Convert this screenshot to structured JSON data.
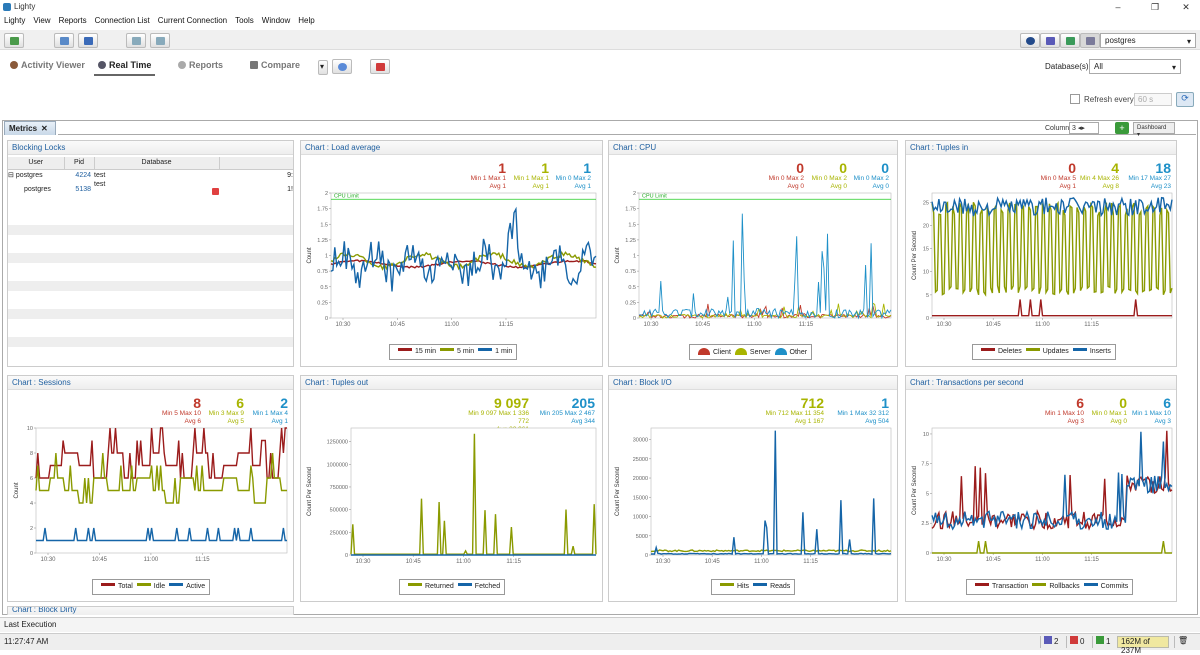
{
  "app_title": "Lighty",
  "window_controls": {
    "minimize": "–",
    "restore": "❐",
    "close": "✕"
  },
  "menu": [
    "Lighty",
    "View",
    "Reports",
    "Connection List",
    "Current Connection",
    "Tools",
    "Window",
    "Help"
  ],
  "connection": "postgres",
  "tabs": [
    {
      "label": "Activity Viewer",
      "icon": "person-icon"
    },
    {
      "label": "Real Time",
      "icon": "gauge-icon"
    },
    {
      "label": "Reports",
      "icon": "wrench-icon"
    },
    {
      "label": "Compare",
      "icon": "compare-icon"
    }
  ],
  "databases_label": "Database(s)",
  "databases_value": "All",
  "refresh_label": "Refresh every",
  "refresh_value": "60 s",
  "metrics_tab": "Metrics",
  "columns_label": "Columns",
  "columns_value": "3",
  "dashboard_label": "Dashboard",
  "blocking": {
    "title": "Blocking Locks",
    "headers": [
      "User",
      "Pid",
      "Database"
    ],
    "rows": [
      {
        "user": "postgres",
        "pid": "4224",
        "db": "test",
        "extra": "9:"
      },
      {
        "user": "postgres",
        "pid": "5138",
        "db": "test",
        "extra": "1!"
      }
    ]
  },
  "charts": [
    {
      "id": "load",
      "title": "Chart : Load average",
      "ylabel": "Count",
      "xticks": [
        "10:30",
        "10:45",
        "11:00",
        "11:15"
      ],
      "yticks": [
        "0",
        "0.25",
        "0.5",
        "0.75",
        "1",
        "1.25",
        "1.5",
        "1.75",
        "2"
      ],
      "ymax": 2,
      "limit": 1.9,
      "limit_label": "CPU Limit",
      "stats": [
        {
          "big": "1",
          "line1": "Min 1 Max 1",
          "line2": "Avg 1",
          "color": "#c0392b"
        },
        {
          "big": "1",
          "line1": "Min 1 Max 1",
          "line2": "Avg 1",
          "color": "#a8b400"
        },
        {
          "big": "1",
          "line1": "Min 0 Max 2",
          "line2": "Avg 1",
          "color": "#1e90c8"
        }
      ],
      "legend": [
        {
          "name": "15 min",
          "color": "#9b1c1c"
        },
        {
          "name": "5 min",
          "color": "#8a9a00"
        },
        {
          "name": "1 min",
          "color": "#1565a8"
        }
      ]
    },
    {
      "id": "cpu",
      "title": "Chart : CPU",
      "ylabel": "Count",
      "xticks": [
        "10:30",
        "10:45",
        "11:00",
        "11:15"
      ],
      "yticks": [
        "0",
        "0.25",
        "0.5",
        "0.75",
        "1",
        "1.25",
        "1.5",
        "1.75",
        "2"
      ],
      "ymax": 2,
      "limit": 1.9,
      "limit_label": "CPU Limit",
      "stats": [
        {
          "big": "0",
          "line1": "Min 0 Max 2",
          "line2": "Avg 0",
          "color": "#c0392b"
        },
        {
          "big": "0",
          "line1": "Min 0 Max 2",
          "line2": "Avg 0",
          "color": "#a8b400"
        },
        {
          "big": "0",
          "line1": "Min 0 Max 2",
          "line2": "Avg 0",
          "color": "#1e90c8"
        }
      ],
      "legend": [
        {
          "name": "Client",
          "color": "#c0392b"
        },
        {
          "name": "Server",
          "color": "#a8b400"
        },
        {
          "name": "Other",
          "color": "#1e90c8"
        }
      ]
    },
    {
      "id": "tin",
      "title": "Chart : Tuples in",
      "ylabel": "Count Per Second",
      "xticks": [
        "10:30",
        "10:45",
        "11:00",
        "11:15"
      ],
      "yticks": [
        "0",
        "5",
        "10",
        "15",
        "20",
        "25"
      ],
      "ymax": 27,
      "stats": [
        {
          "big": "0",
          "line1": "Min 0 Max 5",
          "line2": "Avg 1",
          "color": "#c0392b"
        },
        {
          "big": "4",
          "line1": "Min 4 Max 26",
          "line2": "Avg 8",
          "color": "#a8b400"
        },
        {
          "big": "18",
          "line1": "Min 17 Max 27",
          "line2": "Avg 23",
          "color": "#1e90c8"
        }
      ],
      "legend": [
        {
          "name": "Deletes",
          "color": "#9b1c1c"
        },
        {
          "name": "Updates",
          "color": "#8a9a00"
        },
        {
          "name": "Inserts",
          "color": "#1565a8"
        }
      ]
    },
    {
      "id": "sess",
      "title": "Chart : Sessions",
      "ylabel": "Count",
      "xticks": [
        "10:30",
        "10:45",
        "11:00",
        "11:15"
      ],
      "yticks": [
        "0",
        "2",
        "4",
        "6",
        "8",
        "10"
      ],
      "ymax": 10,
      "stats": [
        {
          "big": "8",
          "line1": "Min 5 Max 10",
          "line2": "Avg 6",
          "color": "#c0392b"
        },
        {
          "big": "6",
          "line1": "Min 3 Max 9",
          "line2": "Avg 5",
          "color": "#a8b400"
        },
        {
          "big": "2",
          "line1": "Min 1 Max 4",
          "line2": "Avg 1",
          "color": "#1e90c8"
        }
      ],
      "legend": [
        {
          "name": "Total",
          "color": "#9b1c1c"
        },
        {
          "name": "Idle",
          "color": "#8a9a00"
        },
        {
          "name": "Active",
          "color": "#1565a8"
        }
      ]
    },
    {
      "id": "tout",
      "title": "Chart : Tuples out",
      "ylabel": "Count Per Second",
      "xticks": [
        "10:30",
        "10:45",
        "11:00",
        "11:15"
      ],
      "yticks": [
        "0",
        "250000",
        "500000",
        "750000",
        "1000000",
        "1250000"
      ],
      "ymax": 1400000,
      "stats": [
        {
          "big": "9 097",
          "line1": "Min 9 097 Max 1 336 772",
          "line2": "Avg 32 961",
          "color": "#a8b400"
        },
        {
          "big": "205",
          "line1": "Min 205 Max 2 467",
          "line2": "Avg 344",
          "color": "#1e90c8"
        }
      ],
      "legend": [
        {
          "name": "Returned",
          "color": "#8a9a00"
        },
        {
          "name": "Fetched",
          "color": "#1565a8"
        }
      ]
    },
    {
      "id": "bio",
      "title": "Chart : Block I/O",
      "ylabel": "Count Per Second",
      "xticks": [
        "10:30",
        "10:45",
        "11:00",
        "11:15"
      ],
      "yticks": [
        "0",
        "5000",
        "10000",
        "15000",
        "20000",
        "25000",
        "30000"
      ],
      "ymax": 33000,
      "stats": [
        {
          "big": "712",
          "line1": "Min 712 Max 11 354",
          "line2": "Avg 1 167",
          "color": "#a8b400"
        },
        {
          "big": "1",
          "line1": "Min 1 Max 32 312",
          "line2": "Avg 504",
          "color": "#1e90c8"
        }
      ],
      "legend": [
        {
          "name": "Hits",
          "color": "#8a9a00"
        },
        {
          "name": "Reads",
          "color": "#1565a8"
        }
      ]
    },
    {
      "id": "tps",
      "title": "Chart : Transactions per second",
      "ylabel": "Count Per Second",
      "xticks": [
        "10:30",
        "10:45",
        "11:00",
        "11:15"
      ],
      "yticks": [
        "0",
        "2.5",
        "5",
        "7.5",
        "10"
      ],
      "ymax": 10.5,
      "stats": [
        {
          "big": "6",
          "line1": "Min 1 Max 10",
          "line2": "Avg 3",
          "color": "#c0392b"
        },
        {
          "big": "0",
          "line1": "Min 0 Max 1",
          "line2": "Avg 0",
          "color": "#a8b400"
        },
        {
          "big": "6",
          "line1": "Min 1 Max 10",
          "line2": "Avg 3",
          "color": "#1e90c8"
        }
      ],
      "legend": [
        {
          "name": "Transaction",
          "color": "#9b1c1c"
        },
        {
          "name": "Rollbacks",
          "color": "#8a9a00"
        },
        {
          "name": "Commits",
          "color": "#1565a8"
        }
      ]
    }
  ],
  "next_panel_title": "Chart : Block Dirty",
  "status_last": "Last Execution",
  "status_time": "11:27:47 AM",
  "status_badges": {
    "connections": "2",
    "errors": "0",
    "warnings": "1",
    "memory": "162M of 237M"
  }
}
